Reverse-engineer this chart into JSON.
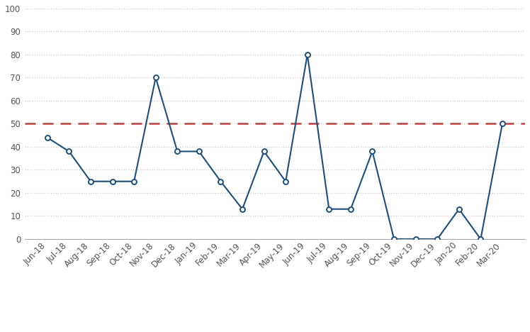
{
  "labels": [
    "Jun-18",
    "Jul-18",
    "Aug-18",
    "Sep-18",
    "Oct-18",
    "Nov-18",
    "Dec-18",
    "Jan-19",
    "Feb-19",
    "Mar-19",
    "Apr-19",
    "May-19",
    "Jun-19",
    "Jul-19",
    "Aug-19",
    "Sep-19",
    "Oct-19",
    "Nov-19",
    "Dec-19",
    "Jan-20",
    "Feb-20",
    "Mar-20"
  ],
  "values": [
    44,
    38,
    25,
    25,
    25,
    70,
    38,
    38,
    25,
    13,
    38,
    25,
    80,
    13,
    13,
    38,
    0,
    0,
    0,
    13,
    0,
    50
  ],
  "bearish_line": 50,
  "line_color": "#1f4e79",
  "bearish_color": "#b94040",
  "ylim": [
    0,
    100
  ],
  "yticks": [
    0,
    10,
    20,
    30,
    40,
    50,
    60,
    70,
    80,
    90,
    100
  ],
  "background_color": "#ffffff",
  "grid_color": "#c8c8c8",
  "marker_size": 5,
  "line_width": 1.5,
  "font_color": "#555555",
  "tick_label_fontsize": 8.5,
  "legend_fontsize": 9
}
